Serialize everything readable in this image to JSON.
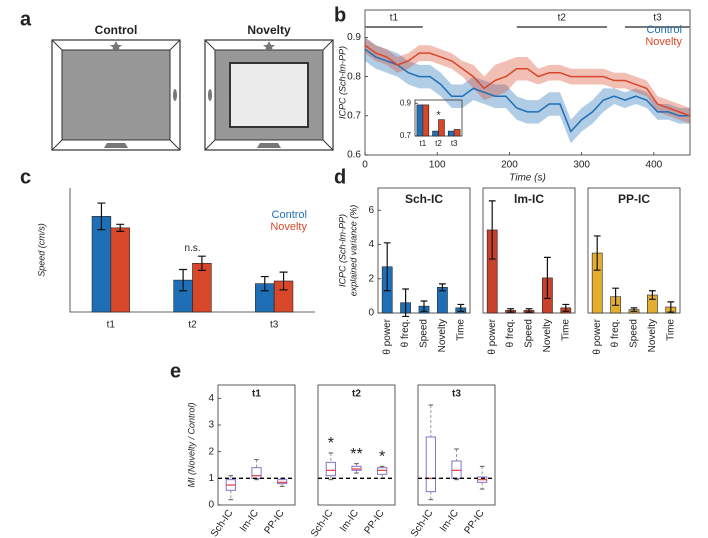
{
  "panel_labels": [
    "a",
    "b",
    "c",
    "d",
    "e"
  ],
  "diagram": {
    "titles": [
      "Control",
      "Novelty"
    ]
  },
  "chart_data": [
    {
      "type": "line",
      "x": [
        0,
        15,
        30,
        45,
        60,
        75,
        90,
        105,
        120,
        135,
        150,
        165,
        180,
        195,
        210,
        225,
        240,
        255,
        270,
        285,
        300,
        315,
        330,
        345,
        360,
        375,
        390,
        405,
        420,
        435,
        450
      ],
      "series": [
        {
          "name": "Control",
          "color": "#1f6fb6",
          "values": [
            0.87,
            0.85,
            0.84,
            0.83,
            0.81,
            0.8,
            0.8,
            0.78,
            0.75,
            0.75,
            0.77,
            0.76,
            0.75,
            0.75,
            0.72,
            0.71,
            0.71,
            0.73,
            0.73,
            0.66,
            0.69,
            0.71,
            0.74,
            0.75,
            0.74,
            0.75,
            0.74,
            0.71,
            0.71,
            0.7,
            0.7
          ],
          "errors": [
            0.03,
            0.03,
            0.03,
            0.03,
            0.03,
            0.03,
            0.03,
            0.03,
            0.03,
            0.03,
            0.03,
            0.03,
            0.03,
            0.03,
            0.03,
            0.03,
            0.03,
            0.03,
            0.03,
            0.03,
            0.03,
            0.03,
            0.03,
            0.02,
            0.02,
            0.02,
            0.02,
            0.02,
            0.02,
            0.02,
            0.02
          ]
        },
        {
          "name": "Novelty",
          "color": "#d9472b",
          "values": [
            0.88,
            0.86,
            0.85,
            0.83,
            0.84,
            0.86,
            0.86,
            0.85,
            0.84,
            0.82,
            0.8,
            0.77,
            0.79,
            0.8,
            0.82,
            0.82,
            0.8,
            0.81,
            0.81,
            0.8,
            0.8,
            0.8,
            0.8,
            0.79,
            0.79,
            0.78,
            0.77,
            0.73,
            0.72,
            0.71,
            0.7
          ],
          "errors": [
            0.02,
            0.02,
            0.02,
            0.02,
            0.02,
            0.02,
            0.02,
            0.02,
            0.02,
            0.02,
            0.03,
            0.03,
            0.04,
            0.04,
            0.03,
            0.03,
            0.02,
            0.02,
            0.02,
            0.02,
            0.02,
            0.02,
            0.02,
            0.02,
            0.02,
            0.02,
            0.02,
            0.02,
            0.02,
            0.02,
            0.02
          ]
        }
      ],
      "xlim": [
        0,
        450
      ],
      "xticks": [
        0,
        100,
        200,
        300,
        400
      ],
      "ylim": [
        0.6,
        0.97
      ],
      "yticks": [
        0.6,
        0.7,
        0.8,
        0.9
      ],
      "xlabel": "Time (s)",
      "ylabel": "ICPC (Sch-lm-PP)",
      "periods": [
        {
          "label": "t1",
          "start": 0,
          "end": 80
        },
        {
          "label": "t2",
          "start": 210,
          "end": 335
        },
        {
          "label": "t3",
          "start": 360,
          "end": 450
        }
      ],
      "legend": "upper right"
    },
    {
      "type": "bar",
      "categories": [
        "t1",
        "t2",
        "t3"
      ],
      "series": [
        {
          "color": "#1f6fb6",
          "values": [
            0.89,
            0.73,
            0.73
          ]
        },
        {
          "color": "#d9472b",
          "values": [
            0.89,
            0.8,
            0.74
          ]
        }
      ],
      "ylim": [
        0.7,
        0.92
      ],
      "yticks": [
        0.7,
        0.9
      ],
      "annotations": [
        null,
        "*",
        null
      ]
    },
    {
      "type": "bar",
      "categories": [
        "t1",
        "t2",
        "t3"
      ],
      "series": [
        {
          "name": "Control",
          "color": "#1f6fb6",
          "values": [
            10.8,
            3.6,
            3.2
          ],
          "errors": [
            1.5,
            1.2,
            0.8
          ]
        },
        {
          "name": "Novelty",
          "color": "#d9472b",
          "values": [
            9.5,
            5.5,
            3.5
          ],
          "errors": [
            0.4,
            0.8,
            1.0
          ]
        }
      ],
      "ylim": [
        0,
        14
      ],
      "ylabel": "Speed (cm/s)",
      "annotations": [
        null,
        "n.s.",
        null
      ],
      "legend": "upper right"
    },
    {
      "type": "bar",
      "title": "Sch-IC",
      "categories": [
        "θ power",
        "θ freq.",
        "Speed",
        "Novelty",
        "Time"
      ],
      "values": [
        2.7,
        0.6,
        0.4,
        1.5,
        0.3
      ],
      "errors": [
        1.4,
        0.8,
        0.3,
        0.2,
        0.2
      ],
      "color": "#1f6fb6",
      "ylim": [
        0,
        7.3
      ],
      "yticks": [
        0,
        2,
        4,
        6
      ],
      "ylabel": [
        "ICPC (Sch-lm-PP)",
        "explained variance (%)"
      ]
    },
    {
      "type": "bar",
      "title": "lm-IC",
      "categories": [
        "θ power",
        "θ freq.",
        "Speed",
        "Novelty",
        "Time"
      ],
      "values": [
        4.85,
        0.15,
        0.15,
        2.05,
        0.3
      ],
      "errors": [
        1.7,
        0.1,
        0.1,
        1.2,
        0.2
      ],
      "color": "#c8412a",
      "ylim": [
        0,
        7.3
      ]
    },
    {
      "type": "bar",
      "title": "PP-IC",
      "categories": [
        "θ power",
        "θ freq.",
        "Speed",
        "Novelty",
        "Time"
      ],
      "values": [
        3.5,
        0.95,
        0.2,
        1.05,
        0.35
      ],
      "errors": [
        1.0,
        0.5,
        0.1,
        0.25,
        0.3
      ],
      "color": "#e3ae2f",
      "ylim": [
        0,
        7.3
      ]
    },
    {
      "type": "box",
      "title": "t1",
      "categories": [
        "Sch-IC",
        "lm-IC",
        "PP-IC"
      ],
      "boxes": [
        {
          "low": 0.2,
          "q1": 0.55,
          "median": 0.75,
          "q3": 0.95,
          "high": 1.1
        },
        {
          "low": 0.95,
          "q1": 1.0,
          "median": 1.1,
          "q3": 1.4,
          "high": 1.7
        },
        {
          "low": 0.7,
          "q1": 0.8,
          "median": 0.85,
          "q3": 0.95,
          "high": 1.0
        }
      ],
      "ylim": [
        0,
        4.5
      ],
      "yticks": [
        0,
        1,
        2,
        3,
        4
      ],
      "ylabel": "MI (Novelty / Control)",
      "refline": 1,
      "color": "#8a6fd1",
      "median_color": "#e0443a"
    },
    {
      "type": "box",
      "title": "t2",
      "categories": [
        "Sch-IC",
        "lm-IC",
        "PP-IC"
      ],
      "boxes": [
        {
          "low": 0.95,
          "q1": 1.1,
          "median": 1.3,
          "q3": 1.6,
          "high": 1.95
        },
        {
          "low": 1.2,
          "q1": 1.3,
          "median": 1.35,
          "q3": 1.45,
          "high": 1.55
        },
        {
          "low": 1.0,
          "q1": 1.15,
          "median": 1.3,
          "q3": 1.4,
          "high": 1.45
        }
      ],
      "ylim": [
        0,
        4.5
      ],
      "refline": 1,
      "color": "#8a6fd1",
      "median_color": "#e0443a",
      "annotations": [
        "*",
        "**",
        "*"
      ]
    },
    {
      "type": "box",
      "title": "t3",
      "categories": [
        "Sch-IC",
        "lm-IC",
        "PP-IC"
      ],
      "boxes": [
        {
          "low": 0.2,
          "q1": 0.5,
          "median": 1.0,
          "q3": 2.55,
          "high": 3.75
        },
        {
          "low": 0.95,
          "q1": 1.0,
          "median": 1.3,
          "q3": 1.65,
          "high": 2.1
        },
        {
          "low": 0.6,
          "q1": 0.85,
          "median": 0.95,
          "q3": 1.05,
          "high": 1.45
        }
      ],
      "ylim": [
        0,
        4.5
      ],
      "refline": 1,
      "color": "#8a6fd1",
      "median_color": "#e0443a"
    }
  ]
}
